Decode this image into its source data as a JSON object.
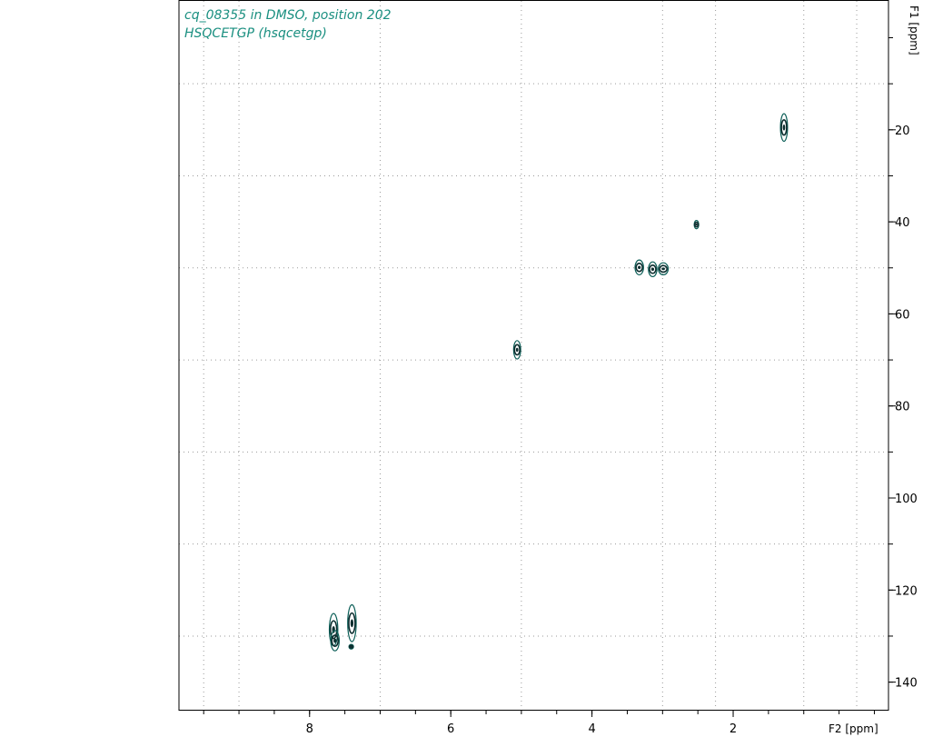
{
  "chart_data": {
    "type": "scatter",
    "title_lines": [
      "cq_08355 in DMSO, position 202",
      "HSQCETGP (hsqcetgp)"
    ],
    "xlabel": "F2 [ppm]",
    "ylabel": "F1 [ppm]",
    "x_reversed": true,
    "xlim": [
      9.85,
      -0.2
    ],
    "ylim": [
      -8,
      146
    ],
    "x_ticks": [
      8,
      6,
      4,
      2
    ],
    "x_minor_ticks": [
      9.5,
      9,
      8.5,
      8,
      7.5,
      7,
      6.5,
      6,
      5.5,
      5,
      4.5,
      4,
      3.5,
      3,
      2.5,
      2,
      1.5,
      1,
      0.5,
      0
    ],
    "x_grid": [
      9.5,
      9,
      7,
      5,
      3,
      2.25,
      1,
      0.25
    ],
    "y_ticks": [
      20,
      40,
      60,
      80,
      100,
      120,
      140
    ],
    "y_minor_ticks": [
      0,
      10,
      20,
      30,
      40,
      50,
      60,
      70,
      80,
      90,
      100,
      110,
      120,
      130,
      140
    ],
    "y_grid": [
      10,
      30,
      50,
      70,
      90,
      110,
      130
    ],
    "grid": true,
    "contour_color": "#0b5e57",
    "contour_dark": "#0d2e2f",
    "title_color": "#1a8f80",
    "series": [
      {
        "points": [
          {
            "x": 1.28,
            "y": 19.5,
            "hw": 0.05,
            "hh": 3.0
          },
          {
            "x": 2.52,
            "y": 40.6,
            "hw": 0.03,
            "hh": 0.9
          },
          {
            "x": 3.33,
            "y": 49.9,
            "hw": 0.06,
            "hh": 1.6
          },
          {
            "x": 3.14,
            "y": 50.3,
            "hw": 0.06,
            "hh": 1.6
          },
          {
            "x": 2.99,
            "y": 50.2,
            "hw": 0.07,
            "hh": 1.3
          },
          {
            "x": 5.06,
            "y": 67.8,
            "hw": 0.05,
            "hh": 2.0
          },
          {
            "x": 7.66,
            "y": 128.6,
            "hw": 0.06,
            "hh": 3.5
          },
          {
            "x": 7.64,
            "y": 131.0,
            "hw": 0.06,
            "hh": 2.2
          },
          {
            "x": 7.4,
            "y": 127.2,
            "hw": 0.06,
            "hh": 4.0
          },
          {
            "x": 7.41,
            "y": 132.3,
            "hw": 0.02,
            "hh": 0.5
          }
        ]
      }
    ]
  }
}
